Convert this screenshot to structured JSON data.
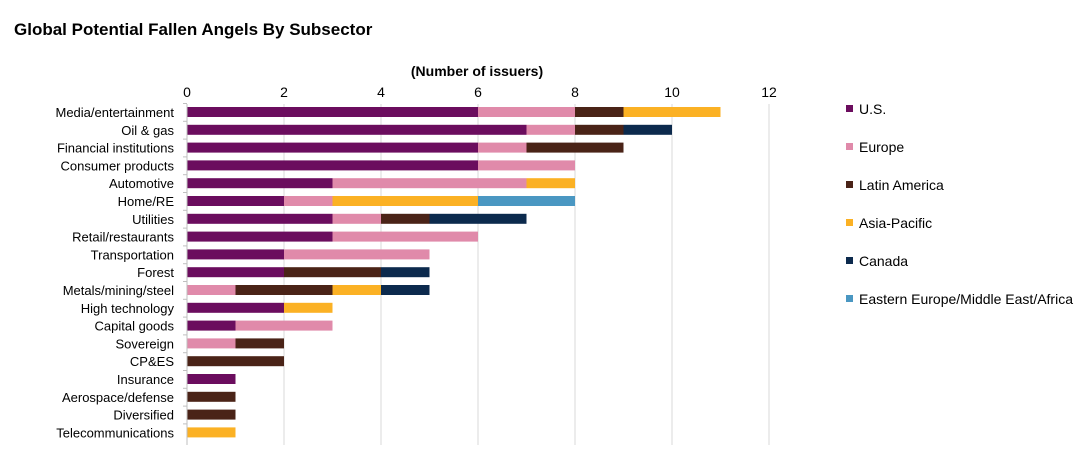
{
  "chart_data": {
    "type": "bar",
    "orientation": "horizontal",
    "stacked": true,
    "title": "Global Potential Fallen Angels By Subsector",
    "xlabel": "(Number of issuers)",
    "xlim": [
      0,
      12
    ],
    "x_ticks": [
      "0",
      "2",
      "4",
      "6",
      "8",
      "10",
      "12"
    ],
    "x_axis_position": "top",
    "grid": "vertical",
    "legend_position": "right",
    "categories": [
      "Media/entertainment",
      "Oil & gas",
      "Financial institutions",
      "Consumer products",
      "Automotive",
      "Home/RE",
      "Utilities",
      "Retail/restaurants",
      "Transportation",
      "Forest",
      "Metals/mining/steel",
      "High technology",
      "Capital goods",
      "Sovereign",
      "CP&ES",
      "Insurance",
      "Aerospace/defense",
      "Diversified",
      "Telecommunications"
    ],
    "series": [
      {
        "name": "U.S.",
        "color": "#6b0d5e",
        "values": [
          6,
          7,
          6,
          6,
          3,
          2,
          3,
          3,
          2,
          2,
          0,
          2,
          1,
          0,
          0,
          1,
          0,
          0,
          0
        ]
      },
      {
        "name": "Europe",
        "color": "#e08aaa",
        "values": [
          2,
          1,
          1,
          2,
          4,
          1,
          1,
          3,
          3,
          0,
          1,
          0,
          2,
          1,
          0,
          0,
          0,
          0,
          0
        ]
      },
      {
        "name": "Latin America",
        "color": "#4a2317",
        "values": [
          1,
          1,
          2,
          0,
          0,
          0,
          1,
          0,
          0,
          2,
          2,
          0,
          0,
          1,
          2,
          0,
          1,
          1,
          0
        ]
      },
      {
        "name": "Asia-Pacific",
        "color": "#fbb124",
        "values": [
          2,
          0,
          0,
          0,
          1,
          3,
          0,
          0,
          0,
          0,
          1,
          1,
          0,
          0,
          0,
          0,
          0,
          0,
          1
        ]
      },
      {
        "name": "Canada",
        "color": "#0c2a4d",
        "values": [
          0,
          1,
          0,
          0,
          0,
          0,
          2,
          0,
          0,
          1,
          1,
          0,
          0,
          0,
          0,
          0,
          0,
          0,
          0
        ]
      },
      {
        "name": "Eastern Europe/Middle East/Africa",
        "color": "#4a97c2",
        "values": [
          0,
          0,
          0,
          0,
          0,
          2,
          0,
          0,
          0,
          0,
          0,
          0,
          0,
          0,
          0,
          0,
          0,
          0,
          0
        ]
      }
    ]
  }
}
